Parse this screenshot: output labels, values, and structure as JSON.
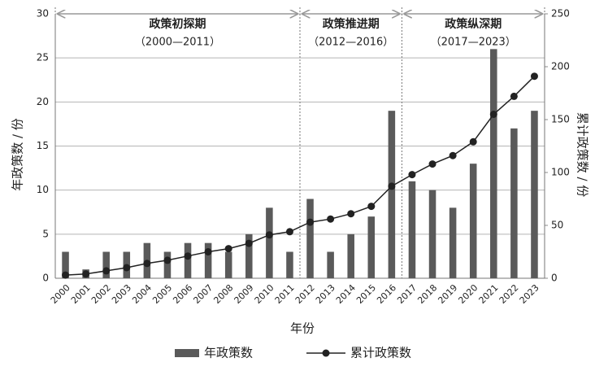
{
  "chart_data": {
    "type": "bar",
    "xlabel": "年份",
    "ylabel": "年政策数 / 份",
    "y2label": "累计政策数 / 份",
    "categories": [
      "2000",
      "2001",
      "2002",
      "2003",
      "2004",
      "2005",
      "2006",
      "2007",
      "2008",
      "2009",
      "2010",
      "2011",
      "2012",
      "2013",
      "2014",
      "2015",
      "2016",
      "2017",
      "2018",
      "2019",
      "2020",
      "2021",
      "2022",
      "2023"
    ],
    "series": [
      {
        "name": "年政策数",
        "type": "bar",
        "color": "#5a5a5a",
        "values": [
          3,
          1,
          3,
          3,
          4,
          3,
          4,
          4,
          3,
          5,
          8,
          3,
          9,
          3,
          5,
          7,
          19,
          11,
          10,
          8,
          13,
          26,
          17,
          19
        ]
      },
      {
        "name": "累计政策数",
        "type": "line",
        "axis": "y2",
        "color": "#222222",
        "values": [
          3,
          4,
          7,
          10,
          14,
          17,
          21,
          25,
          28,
          33,
          41,
          44,
          53,
          56,
          61,
          68,
          87,
          98,
          108,
          116,
          129,
          155,
          172,
          191
        ]
      }
    ],
    "ylim": [
      0,
      30
    ],
    "yticks": [
      0,
      5,
      10,
      15,
      20,
      25,
      30
    ],
    "y2lim": [
      0,
      250
    ],
    "y2ticks": [
      0,
      50,
      100,
      150,
      200,
      250
    ],
    "grid": true,
    "legend": "bottom",
    "annotations": [
      {
        "label": "政策初探期",
        "range": "（2000—2011）"
      },
      {
        "label": "政策推进期",
        "range": "（2012—2016）"
      },
      {
        "label": "政策纵深期",
        "range": "（2017—2023）"
      }
    ]
  }
}
